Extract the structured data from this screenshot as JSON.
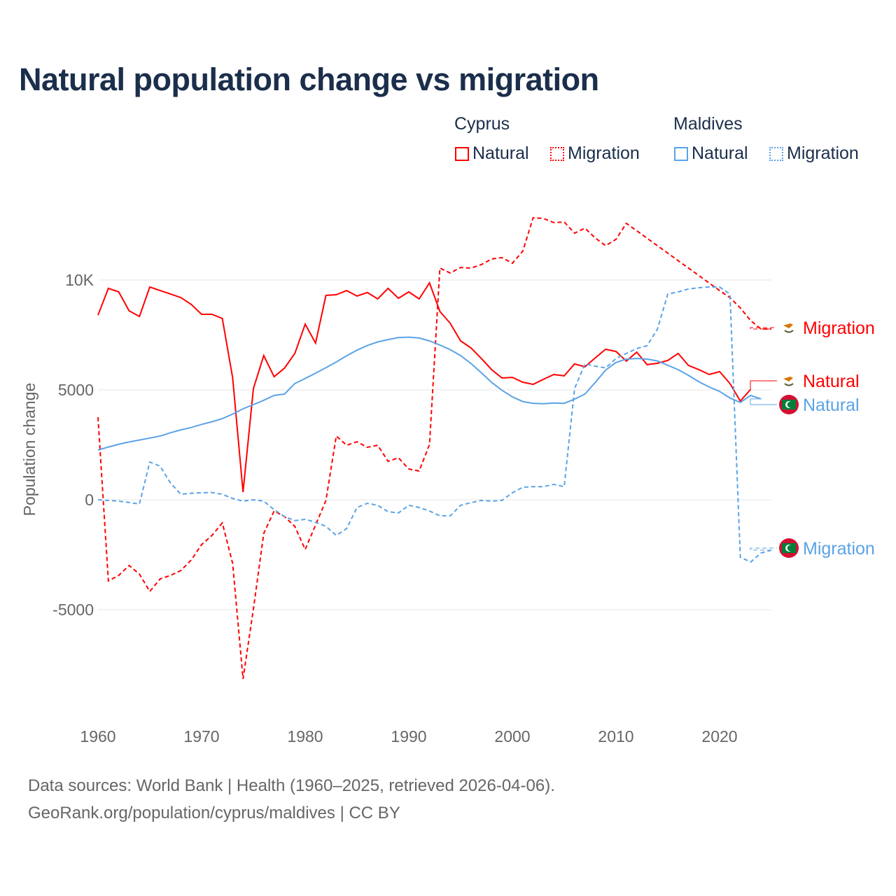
{
  "title": "Natural population change vs migration",
  "legend": {
    "groups": [
      {
        "name": "Cyprus",
        "items": [
          "Natural",
          "Migration"
        ],
        "color": "#ff0000"
      },
      {
        "name": "Maldives",
        "items": [
          "Natural",
          "Migration"
        ],
        "color": "#5ba3e6"
      }
    ]
  },
  "footer": {
    "line1": "Data sources: World Bank | Health (1960–2025, retrieved 2026-04-06).",
    "line2": "GeoRank.org/population/cyprus/maldives | CC BY"
  },
  "chart_data": {
    "type": "line",
    "title": "Natural population change vs migration",
    "xlabel": "",
    "ylabel": "Population change",
    "xlim": [
      1960,
      2025
    ],
    "ylim": [
      -9000,
      14500
    ],
    "x_ticks": [
      1960,
      1970,
      1980,
      1990,
      2000,
      2010,
      2020
    ],
    "y_ticks": [
      {
        "value": -5000,
        "label": "-5000"
      },
      {
        "value": 0,
        "label": "0"
      },
      {
        "value": 5000,
        "label": "5000"
      },
      {
        "value": 10000,
        "label": "10K"
      }
    ],
    "grid": true,
    "legend_position": "top-right",
    "series": [
      {
        "name": "Cyprus Natural",
        "label": "Natural",
        "country": "Cyprus",
        "color": "#ff0000",
        "dashed": false,
        "start": 1960,
        "values": [
          8400,
          9620,
          9460,
          8600,
          8340,
          9680,
          9520,
          9360,
          9200,
          8890,
          8440,
          8440,
          8250,
          5540,
          350,
          5060,
          6560,
          5600,
          5990,
          6660,
          7990,
          7130,
          9300,
          9330,
          9520,
          9270,
          9430,
          9140,
          9620,
          9170,
          9460,
          9140,
          9870,
          8570,
          8030,
          7230,
          6910,
          6430,
          5920,
          5540,
          5570,
          5350,
          5250,
          5480,
          5700,
          5640,
          6180,
          6050,
          6460,
          6850,
          6750,
          6310,
          6720,
          6150,
          6210,
          6340,
          6660,
          6110,
          5920,
          5700,
          5830,
          5290,
          4490,
          5030
        ]
      },
      {
        "name": "Cyprus Migration",
        "label": "Migration",
        "country": "Cyprus",
        "color": "#ff0000",
        "dashed": true,
        "start": 1960,
        "values": [
          3760,
          -3690,
          -3440,
          -2990,
          -3380,
          -4170,
          -3600,
          -3440,
          -3220,
          -2740,
          -2040,
          -1620,
          -1050,
          -2900,
          -8150,
          -4970,
          -1530,
          -510,
          -760,
          -1210,
          -2260,
          -1150,
          -30,
          2900,
          2480,
          2640,
          2390,
          2480,
          1750,
          1910,
          1400,
          1310,
          2520,
          10540,
          10320,
          10570,
          10540,
          10700,
          10960,
          11020,
          10760,
          11310,
          12830,
          12800,
          12610,
          12640,
          12130,
          12360,
          11910,
          11560,
          11850,
          12580,
          12240,
          11900,
          11560,
          11220,
          10880,
          10540,
          10200,
          9860,
          9520,
          9200,
          8730,
          8150,
          7770,
          7770
        ]
      },
      {
        "name": "Maldives Natural",
        "label": "Natural",
        "country": "Maldives",
        "color": "#5ba3e6",
        "dashed": false,
        "start": 1960,
        "values": [
          2260,
          2400,
          2530,
          2630,
          2720,
          2810,
          2900,
          3050,
          3180,
          3290,
          3430,
          3550,
          3690,
          3900,
          4140,
          4330,
          4530,
          4750,
          4810,
          5290,
          5520,
          5760,
          6010,
          6270,
          6550,
          6810,
          7020,
          7180,
          7290,
          7380,
          7400,
          7360,
          7230,
          7040,
          6830,
          6560,
          6200,
          5780,
          5340,
          4980,
          4680,
          4470,
          4390,
          4370,
          4400,
          4390,
          4580,
          4810,
          5340,
          5900,
          6250,
          6400,
          6430,
          6400,
          6320,
          6120,
          5920,
          5660,
          5370,
          5130,
          4930,
          4630,
          4430,
          4750,
          4590
        ]
      },
      {
        "name": "Maldives Migration",
        "label": "Migration",
        "country": "Maldives",
        "color": "#5ba3e6",
        "dashed": true,
        "start": 1960,
        "values": [
          0,
          -30,
          -60,
          -120,
          -190,
          1720,
          1530,
          760,
          250,
          300,
          320,
          330,
          250,
          60,
          -60,
          0,
          -60,
          -450,
          -760,
          -950,
          -890,
          -1020,
          -1210,
          -1620,
          -1310,
          -350,
          -160,
          -250,
          -540,
          -600,
          -250,
          -350,
          -510,
          -730,
          -730,
          -250,
          -130,
          -30,
          -60,
          -30,
          320,
          570,
          600,
          600,
          700,
          600,
          5060,
          6180,
          6080,
          6000,
          6430,
          6660,
          6880,
          7010,
          7770,
          9360,
          9460,
          9590,
          9650,
          9680,
          9680,
          9360,
          -2610,
          -2830,
          -2420,
          -2290
        ]
      }
    ]
  }
}
